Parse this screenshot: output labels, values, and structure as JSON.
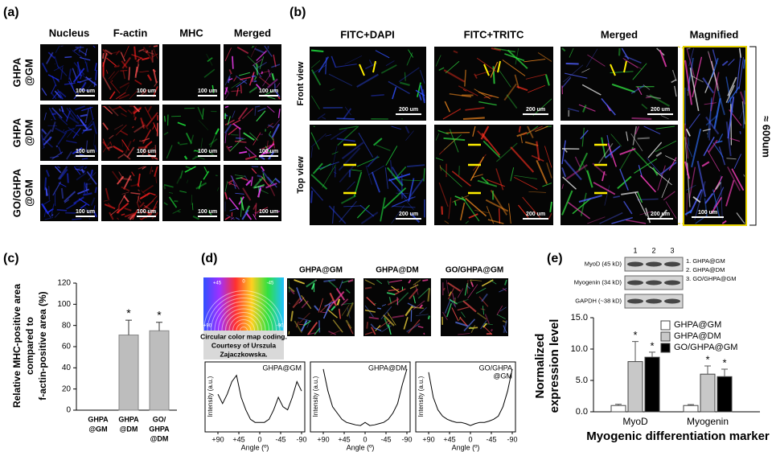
{
  "panel_a": {
    "label": "(a)",
    "columns": [
      "Nucleus",
      "F-actin",
      "MHC",
      "Merged"
    ],
    "rows": [
      [
        "GHPA",
        "@GM"
      ],
      [
        "GHPA",
        "@DM"
      ],
      [
        "GO/GHPA",
        "@GM"
      ]
    ],
    "scale_bar": "100 um"
  },
  "panel_b": {
    "label": "(b)",
    "columns": [
      "FITC+DAPI",
      "FITC+TRITC",
      "Merged",
      "Magnified"
    ],
    "rows": [
      "Front view",
      "Top view"
    ],
    "scale_bar": "200 um",
    "magnified_scale_bar": "100 um",
    "height": "≈ 600um"
  },
  "panel_c": {
    "label": "(c)"
  },
  "panel_d": {
    "label": "(d)",
    "images": [
      "GHPA@GM",
      "GHPA@DM",
      "GO/GHPA@GM"
    ],
    "wheel_labels": [
      "+45",
      "0",
      "-45",
      "+90",
      "-90"
    ],
    "wheel_caption": [
      "Circular color map coding.",
      "Courtesy of Urszula",
      "Zajaczkowska."
    ]
  },
  "panel_e": {
    "label": "(e)",
    "lanes": [
      "1",
      "2",
      "3"
    ],
    "bands": [
      "MyoD (45 kD)",
      "Myogenin (34 kD)",
      "GAPDH (~38 kD)"
    ],
    "key": [
      "1. GHPA@GM",
      "2. GHPA@DM",
      "3. GO/GHPA@GM"
    ]
  },
  "chart_data": [
    {
      "type": "bar",
      "ylabel": [
        "Relative MHC-positive area",
        "compared to",
        "f-actin-positive area (%)"
      ],
      "categories": [
        [
          "GHPA",
          "@GM"
        ],
        [
          "GHPA",
          "@DM"
        ],
        [
          "GO/",
          "GHPA",
          "@DM"
        ]
      ],
      "values": [
        0,
        71,
        75
      ],
      "errors": [
        null,
        14,
        8
      ],
      "stars": [
        null,
        "*",
        "*"
      ],
      "color": "#bdbdbd",
      "ylim": [
        0,
        120
      ],
      "yticks": [
        0,
        20,
        40,
        60,
        80,
        100,
        120
      ]
    },
    {
      "type": "line",
      "title": [
        "GHPA@GM"
      ],
      "xlabel": "Angle (º)",
      "ylabel": "Intensity (a.u.)",
      "x": [
        90,
        80,
        70,
        60,
        50,
        40,
        30,
        20,
        10,
        0,
        -10,
        -20,
        -30,
        -40,
        -50,
        -60,
        -70,
        -80,
        -90
      ],
      "values": [
        0.55,
        0.4,
        0.55,
        0.75,
        0.85,
        0.5,
        0.3,
        0.15,
        0.1,
        0.1,
        0.1,
        0.15,
        0.3,
        0.5,
        0.35,
        0.3,
        0.5,
        0.75,
        0.6
      ],
      "color": "#000000",
      "xlim": [
        90,
        -90
      ],
      "ylim": [
        0,
        1
      ],
      "xticks": [
        {
          "value": 90,
          "label": "+90"
        },
        {
          "value": 45,
          "label": "+45"
        },
        0,
        -45,
        -90
      ]
    },
    {
      "type": "line",
      "title": [
        "GHPA@DM"
      ],
      "xlabel": "Angle (º)",
      "ylabel": "Intensity (a.u.)",
      "x": [
        90,
        80,
        70,
        60,
        50,
        40,
        30,
        20,
        10,
        0,
        -10,
        -20,
        -30,
        -40,
        -50,
        -60,
        -70,
        -80,
        -90
      ],
      "values": [
        0.95,
        0.6,
        0.35,
        0.25,
        0.15,
        0.1,
        0.08,
        0.06,
        0.05,
        0.1,
        0.05,
        0.06,
        0.08,
        0.1,
        0.15,
        0.25,
        0.4,
        0.7,
        0.95
      ],
      "color": "#000000",
      "xlim": [
        90,
        -90
      ],
      "ylim": [
        0,
        1
      ],
      "xticks": [
        {
          "value": 90,
          "label": "+90"
        },
        {
          "value": 45,
          "label": "+45"
        },
        0,
        -45,
        -90
      ]
    },
    {
      "type": "line",
      "title": [
        "GO/GHPA",
        "@GM"
      ],
      "xlabel": "Angle (º)",
      "ylabel": "Intensity (a.u.)",
      "x": [
        90,
        80,
        70,
        60,
        50,
        40,
        30,
        20,
        10,
        0,
        -10,
        -20,
        -30,
        -40,
        -50,
        -60,
        -70,
        -80,
        -90
      ],
      "values": [
        0.9,
        0.5,
        0.3,
        0.2,
        0.15,
        0.12,
        0.1,
        0.1,
        0.08,
        0.05,
        0.08,
        0.1,
        0.1,
        0.12,
        0.15,
        0.2,
        0.35,
        0.6,
        0.95
      ],
      "color": "#000000",
      "xlim": [
        90,
        -90
      ],
      "ylim": [
        0,
        1
      ],
      "xticks": [
        {
          "value": 90,
          "label": "+90"
        },
        {
          "value": 45,
          "label": "+45"
        },
        0,
        -45,
        -90
      ]
    },
    {
      "type": "grouped-bar",
      "ylabel": [
        "Normalized",
        "expression level"
      ],
      "xlabel": "Myogenic differentiation marker",
      "categories": [
        "MyoD",
        "Myogenin"
      ],
      "series": [
        {
          "name": "GHPA@GM",
          "color": "#ffffff",
          "values": [
            1.0,
            1.0
          ],
          "errors": [
            0.2,
            0.15
          ],
          "stars": [
            null,
            null
          ]
        },
        {
          "name": "GHPA@DM",
          "color": "#c8c8c8",
          "values": [
            8.0,
            6.0
          ],
          "errors": [
            3.2,
            1.3
          ],
          "stars": [
            "*",
            "*"
          ]
        },
        {
          "name": "GO/GHPA@GM",
          "color": "#000000",
          "values": [
            8.7,
            5.6
          ],
          "errors": [
            0.8,
            1.2
          ],
          "stars": [
            "*",
            "*"
          ]
        }
      ],
      "ylim": [
        0,
        15
      ],
      "yticks": [
        {
          "value": 0,
          "label": "0.0"
        },
        {
          "value": 5,
          "label": "5.0"
        },
        {
          "value": 10,
          "label": "10.0"
        },
        {
          "value": 15,
          "label": "15.0"
        }
      ],
      "legend": "upper-right"
    }
  ]
}
